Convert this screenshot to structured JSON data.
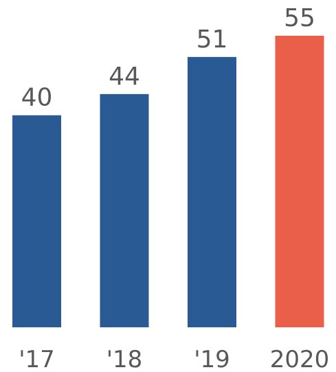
{
  "chart_data": {
    "type": "bar",
    "categories": [
      "'17",
      "'18",
      "'19",
      "2020"
    ],
    "values": [
      40,
      44,
      51,
      55
    ],
    "value_labels": [
      "40",
      "44",
      "51",
      "55"
    ],
    "title": "",
    "xlabel": "",
    "ylabel": "",
    "ylim": [
      0,
      55
    ],
    "grid": false,
    "legend": "none",
    "colors": {
      "default_bar": "#2a5a93",
      "highlight_bar": "#ea5f4a",
      "label_text": "#585858"
    },
    "highlight_index": 3
  }
}
